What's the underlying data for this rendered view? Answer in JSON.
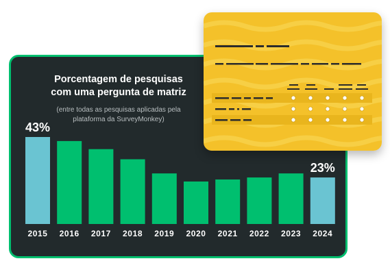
{
  "colors": {
    "panel_bg": "#222a2c",
    "panel_border": "#00bf6f",
    "bar_green": "#00bf6f",
    "bar_teal": "#6ac4d2",
    "card_yellow": "#f4c12a",
    "card_wave": "#f7cf44"
  },
  "icons": {
    "card": "survey-matrix-form-icon"
  },
  "chart_data": {
    "type": "bar",
    "title": "Porcentagem de pesquisas com uma pergunta de matriz",
    "subtitle": "(entre todas as pesquisas aplicadas pela plataforma da SurveyMonkey)",
    "categories": [
      "2015",
      "2016",
      "2017",
      "2018",
      "2019",
      "2020",
      "2021",
      "2022",
      "2023",
      "2024"
    ],
    "values": [
      43,
      41,
      37,
      32,
      25,
      21,
      22,
      23,
      25,
      23
    ],
    "highlighted": [
      "2015",
      "2024"
    ],
    "data_labels": {
      "2015": "43%",
      "2024": "23%"
    },
    "ylim": [
      0,
      43
    ],
    "grid": false,
    "legend": "none"
  }
}
